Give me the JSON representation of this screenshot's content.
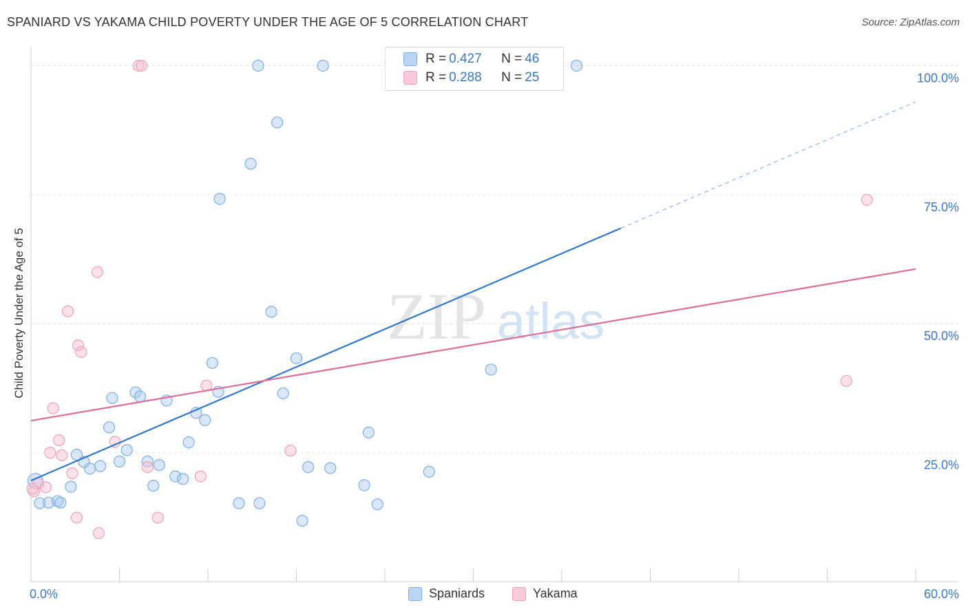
{
  "title": "SPANIARD VS YAKAMA CHILD POVERTY UNDER THE AGE OF 5 CORRELATION CHART",
  "source": "Source: ZipAtlas.com",
  "watermark": {
    "zip": "ZIP",
    "atlas": "atlas"
  },
  "legend_top": {
    "rows": [
      {
        "r_label": "R = ",
        "r_value": "0.427",
        "n_label": "N = ",
        "n_value": "46"
      },
      {
        "r_label": "R = ",
        "r_value": "0.288",
        "n_label": "N = ",
        "n_value": "25"
      }
    ]
  },
  "chart_data": {
    "type": "scatter",
    "title": "SPANIARD VS YAKAMA CHILD POVERTY UNDER THE AGE OF 5 CORRELATION CHART",
    "xlabel": "",
    "ylabel": "Child Poverty Under the Age of 5",
    "xlim": [
      0,
      60
    ],
    "ylim": [
      0,
      105
    ],
    "x_tick_labels": [
      "0.0%",
      "60.0%"
    ],
    "y_ticks": [
      25,
      50,
      75,
      100
    ],
    "y_tick_labels": [
      "25.0%",
      "50.0%",
      "75.0%",
      "100.0%"
    ],
    "grid": true,
    "legend_position": "bottom-center",
    "colors": {
      "Spaniards": "#7aaee8",
      "Yakama": "#f0a0b8",
      "Spaniards_line": "#2f78d0",
      "Yakama_line": "#e06c96",
      "tick_label": "#3a78c9"
    },
    "series": [
      {
        "name": "Spaniards",
        "points": [
          [
            0.3,
            19.5
          ],
          [
            0.6,
            15.2
          ],
          [
            1.2,
            15.3
          ],
          [
            1.8,
            15.6
          ],
          [
            2.0,
            15.3
          ],
          [
            2.7,
            18.4
          ],
          [
            3.1,
            24.6
          ],
          [
            3.6,
            23.2
          ],
          [
            4.0,
            21.9
          ],
          [
            4.7,
            22.4
          ],
          [
            5.3,
            29.9
          ],
          [
            5.5,
            35.6
          ],
          [
            6.0,
            23.3
          ],
          [
            6.5,
            25.5
          ],
          [
            7.1,
            36.7
          ],
          [
            7.4,
            35.9
          ],
          [
            7.9,
            23.3
          ],
          [
            8.3,
            18.6
          ],
          [
            8.7,
            22.6
          ],
          [
            9.2,
            35.1
          ],
          [
            9.8,
            20.4
          ],
          [
            10.3,
            19.9
          ],
          [
            10.7,
            27.0
          ],
          [
            11.2,
            32.7
          ],
          [
            11.8,
            31.3
          ],
          [
            12.3,
            42.4
          ],
          [
            12.7,
            36.8
          ],
          [
            12.8,
            74.2
          ],
          [
            14.1,
            15.2
          ],
          [
            14.9,
            81.0
          ],
          [
            15.4,
            100.0
          ],
          [
            15.5,
            15.2
          ],
          [
            16.3,
            52.3
          ],
          [
            16.7,
            89.0
          ],
          [
            17.1,
            36.5
          ],
          [
            18.0,
            43.3
          ],
          [
            18.4,
            11.8
          ],
          [
            18.8,
            22.2
          ],
          [
            19.8,
            100.0
          ],
          [
            20.3,
            22.0
          ],
          [
            22.6,
            18.7
          ],
          [
            22.9,
            28.9
          ],
          [
            23.5,
            15.0
          ],
          [
            27.0,
            21.3
          ],
          [
            31.2,
            41.1
          ],
          [
            37.0,
            100.0
          ]
        ],
        "regression": {
          "x": [
            0,
            40
          ],
          "y": [
            19.6,
            68.5
          ],
          "dashed_extension_to": [
            60,
            93
          ]
        }
      },
      {
        "name": "Yakama",
        "points": [
          [
            0.2,
            17.5
          ],
          [
            0.5,
            19.0
          ],
          [
            1.0,
            18.3
          ],
          [
            1.3,
            25.0
          ],
          [
            1.5,
            33.6
          ],
          [
            1.9,
            27.4
          ],
          [
            2.1,
            24.5
          ],
          [
            2.5,
            52.4
          ],
          [
            2.8,
            21.0
          ],
          [
            3.1,
            12.4
          ],
          [
            3.2,
            45.8
          ],
          [
            3.4,
            44.5
          ],
          [
            4.5,
            60.0
          ],
          [
            4.6,
            9.4
          ],
          [
            5.7,
            27.1
          ],
          [
            7.3,
            100.0
          ],
          [
            7.5,
            100.0
          ],
          [
            7.9,
            22.2
          ],
          [
            8.6,
            12.4
          ],
          [
            11.5,
            20.4
          ],
          [
            11.9,
            38.0
          ],
          [
            17.6,
            25.4
          ],
          [
            55.3,
            38.9
          ],
          [
            56.7,
            74.0
          ],
          [
            0.1,
            18.0
          ]
        ],
        "regression": {
          "x": [
            0,
            60
          ],
          "y": [
            31.2,
            60.6
          ]
        }
      }
    ]
  },
  "legend_bottom": {
    "items": [
      "Spaniards",
      "Yakama"
    ]
  }
}
